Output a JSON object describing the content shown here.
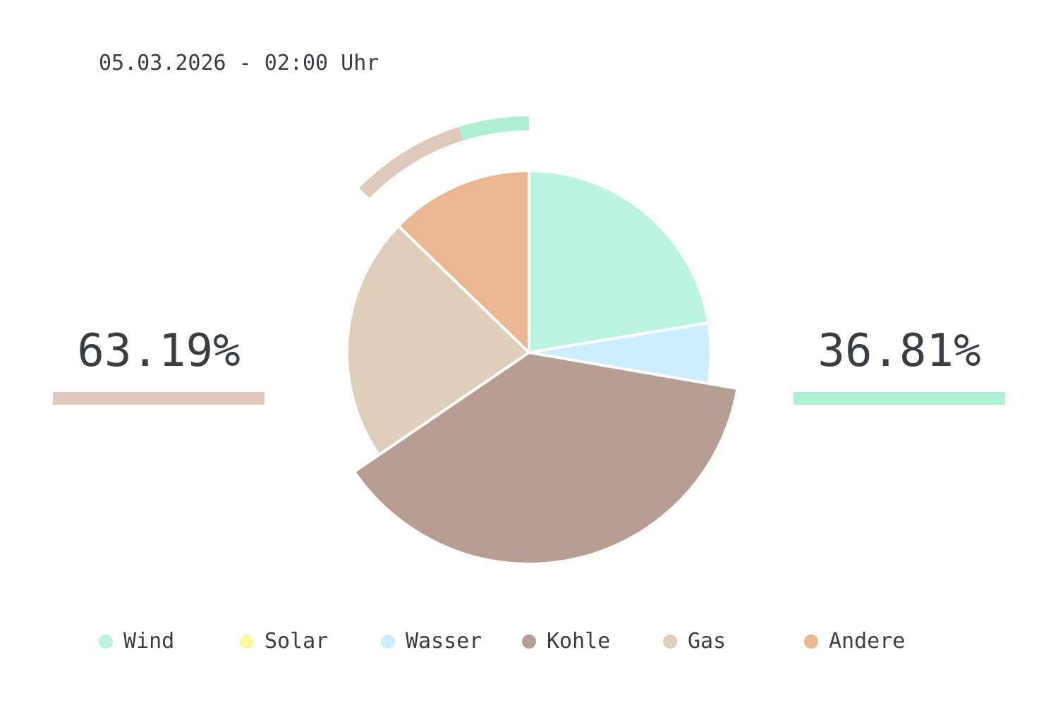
{
  "header": {
    "timestamp": "05.03.2026 - 02:00 Uhr"
  },
  "shares": {
    "left": {
      "value": "63.19%",
      "color": "#e0c9ba"
    },
    "right": {
      "value": "36.81%",
      "color": "#aef0d4"
    }
  },
  "chart_data": {
    "type": "pie",
    "start_angle_deg": 0,
    "direction": "clockwise",
    "exploded": "Kohle",
    "slices": [
      {
        "name": "Wind",
        "value": 22.39,
        "color": "#bbf5e1"
      },
      {
        "name": "Solar",
        "value": 0.0,
        "color": "#f9f8a0"
      },
      {
        "name": "Wasser",
        "value": 5.34,
        "color": "#cdeefe"
      },
      {
        "name": "Kohle",
        "value": 37.74,
        "color": "#b79d94"
      },
      {
        "name": "Gas",
        "value": 21.78,
        "color": "#dfcfba"
      },
      {
        "name": "Andere",
        "value": 12.75,
        "color": "#ebb793"
      }
    ],
    "outer_arcs": [
      {
        "from": 87.25,
        "to": 95.22,
        "color": "#dfc9ba"
      },
      {
        "from": 95.22,
        "to": 100.0,
        "color": "#aef0d4"
      }
    ]
  }
}
